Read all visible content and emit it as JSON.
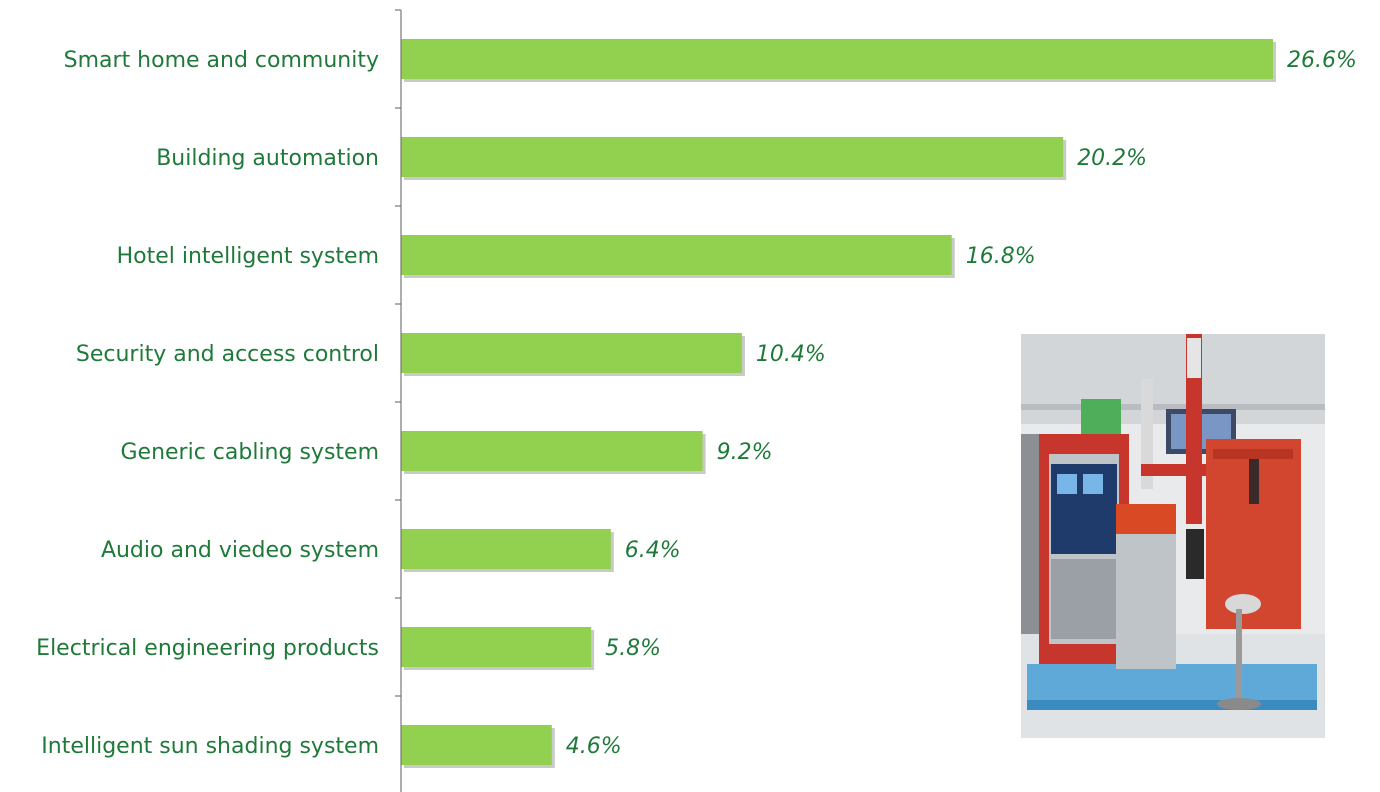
{
  "chart_data": {
    "type": "bar",
    "orientation": "horizontal",
    "categories": [
      "Smart home and community",
      "Building automation",
      "Hotel intelligent system",
      "Security and access control",
      "Generic cabling system",
      "Audio and viedeo system",
      "Electrical engineering products",
      "Intelligent sun shading system"
    ],
    "values": [
      26.6,
      20.2,
      16.8,
      10.4,
      9.2,
      6.4,
      5.8,
      4.6
    ],
    "value_labels": [
      "26.6%",
      "20.2%",
      "16.8%",
      "10.4%",
      "9.2%",
      "6.4%",
      "5.8%",
      "4.6%"
    ],
    "xlim": [
      0,
      26.6
    ],
    "grid": false,
    "colors": {
      "bar": "#92d050",
      "text": "#1f7a3a",
      "axis": "#777777"
    }
  },
  "photo": {
    "subject": "parking barrier gate and access control equipment exhibit"
  }
}
